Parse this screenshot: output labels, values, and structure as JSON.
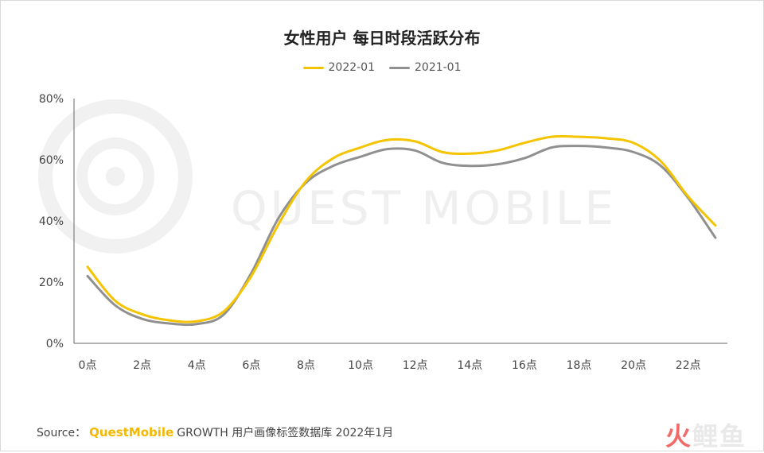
{
  "chart_data": {
    "type": "line",
    "title": "女性用户 每日时段活跃分布",
    "x": [
      0,
      1,
      2,
      3,
      4,
      5,
      6,
      7,
      8,
      9,
      10,
      11,
      12,
      13,
      14,
      15,
      16,
      17,
      18,
      19,
      20,
      21,
      22,
      23
    ],
    "x_tick_values": [
      0,
      2,
      4,
      6,
      8,
      10,
      12,
      14,
      16,
      18,
      20,
      22
    ],
    "x_tick_labels": [
      "0点",
      "2点",
      "4点",
      "6点",
      "8点",
      "10点",
      "12点",
      "14点",
      "16点",
      "18点",
      "20点",
      "22点"
    ],
    "xlim": [
      0,
      23
    ],
    "y_tick_values": [
      0,
      20,
      40,
      60,
      80
    ],
    "y_tick_labels": [
      "0%",
      "20%",
      "40%",
      "60%",
      "80%"
    ],
    "ylim": [
      0,
      80
    ],
    "grid": false,
    "legend_position": "top-center",
    "series": [
      {
        "name": "2022-01",
        "color": "#f5c400",
        "values": [
          25,
          14,
          9.5,
          7.5,
          7.2,
          10.5,
          22,
          39,
          53,
          60.5,
          64,
          66.5,
          66,
          62.5,
          62,
          63,
          65.5,
          67.5,
          67.5,
          67,
          65.5,
          59.5,
          48,
          38.5
        ]
      },
      {
        "name": "2021-01",
        "color": "#909090",
        "values": [
          22,
          12.5,
          8,
          6.5,
          6.3,
          9.5,
          23,
          41,
          52.5,
          58,
          61,
          63.5,
          63,
          59,
          58,
          58.5,
          60.5,
          64,
          64.5,
          64,
          62.5,
          58,
          47.5,
          34.5
        ]
      }
    ]
  },
  "watermark": {
    "text": "QUEST MOBILE"
  },
  "source": {
    "label": "Source：",
    "brand": "QuestMobile",
    "text": "GROWTH 用户画像标签数据库 2022年1月"
  },
  "corner_logo": {
    "part1": "火",
    "part2": "鲤鱼"
  }
}
